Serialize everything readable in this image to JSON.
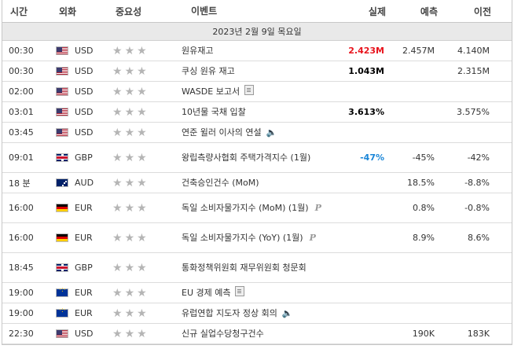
{
  "header": {
    "time": "시간",
    "currency": "외화",
    "importance": "중요성",
    "event": "이벤트",
    "actual": "실제",
    "forecast": "예측",
    "previous": "이전"
  },
  "date_label": "2023년 2월 9일 목요일",
  "rows": [
    {
      "time": "00:30",
      "flag": "us-flag-icon",
      "currency": "USD",
      "stars": 3,
      "event": "원유재고",
      "icon": "",
      "actual": "2.423M",
      "actual_color": "#e8141d",
      "forecast": "2.457M",
      "previous": "4.140M"
    },
    {
      "time": "00:30",
      "flag": "us-flag-icon",
      "currency": "USD",
      "stars": 3,
      "event": "쿠싱 원유 재고",
      "icon": "",
      "actual": "1.043M",
      "actual_color": "#000000",
      "forecast": "",
      "previous": "2.315M"
    },
    {
      "time": "02:00",
      "flag": "us-flag-icon",
      "currency": "USD",
      "stars": 2,
      "event": "WASDE 보고서",
      "icon": "document-icon",
      "actual": "",
      "actual_color": "#000000",
      "forecast": "",
      "previous": ""
    },
    {
      "time": "03:01",
      "flag": "us-flag-icon",
      "currency": "USD",
      "stars": 2,
      "event": "10년물 국채 입찰",
      "icon": "",
      "actual": "3.613%",
      "actual_color": "#000000",
      "forecast": "",
      "previous": "3.575%"
    },
    {
      "time": "03:45",
      "flag": "us-flag-icon",
      "currency": "USD",
      "stars": 2,
      "event": "연준 윌러 이사의 연설",
      "icon": "speaker-icon",
      "actual": "",
      "actual_color": "#000000",
      "forecast": "",
      "previous": ""
    },
    {
      "time": "09:01",
      "flag": "gb-flag-icon",
      "currency": "GBP",
      "stars": 2,
      "event": "왕립측량사협회 주택가격지수 (1월)",
      "icon": "",
      "actual": "-47%",
      "actual_color": "#1a86d8",
      "forecast": "-45%",
      "previous": "-42%"
    },
    {
      "time": "18 분",
      "flag": "au-flag-icon",
      "currency": "AUD",
      "stars": 2,
      "event": "건축승인건수 (MoM)",
      "icon": "",
      "actual": "",
      "actual_color": "#000000",
      "forecast": "18.5%",
      "previous": "-8.8%"
    },
    {
      "time": "16:00",
      "flag": "de-flag-icon",
      "currency": "EUR",
      "stars": 2,
      "event": "독일 소비자물가지수 (MoM) (1월)",
      "icon": "preliminary-icon",
      "actual": "",
      "actual_color": "#000000",
      "forecast": "0.8%",
      "previous": "-0.8%"
    },
    {
      "time": "16:00",
      "flag": "de-flag-icon",
      "currency": "EUR",
      "stars": 2,
      "event": "독일 소비자물가지수 (YoY) (1월)",
      "icon": "preliminary-icon",
      "actual": "",
      "actual_color": "#000000",
      "forecast": "8.9%",
      "previous": "8.6%"
    },
    {
      "time": "18:45",
      "flag": "gb-flag-icon",
      "currency": "GBP",
      "stars": 2,
      "event": "통화정책위원회 재무위원회 청문회",
      "icon": "",
      "actual": "",
      "actual_color": "#000000",
      "forecast": "",
      "previous": ""
    },
    {
      "time": "19:00",
      "flag": "eu-flag-icon",
      "currency": "EUR",
      "stars": 2,
      "event": "EU 경제 예측",
      "icon": "document-icon",
      "actual": "",
      "actual_color": "#000000",
      "forecast": "",
      "previous": ""
    },
    {
      "time": "19:00",
      "flag": "eu-flag-icon",
      "currency": "EUR",
      "stars": 2,
      "event": "유럽연합 지도자 정상 회의",
      "icon": "speaker-icon",
      "actual": "",
      "actual_color": "#000000",
      "forecast": "",
      "previous": ""
    },
    {
      "time": "22:30",
      "flag": "us-flag-icon",
      "currency": "USD",
      "stars": 3,
      "event": "신규 실업수당청구건수",
      "icon": "",
      "actual": "",
      "actual_color": "#000000",
      "forecast": "190K",
      "previous": "183K"
    }
  ],
  "icons": {
    "preliminary": "P"
  },
  "colors": {
    "star": "#b5b5b5",
    "negative": "#e8141d",
    "positive": "#1a86d8",
    "date_bg": "#e9e9e9"
  }
}
